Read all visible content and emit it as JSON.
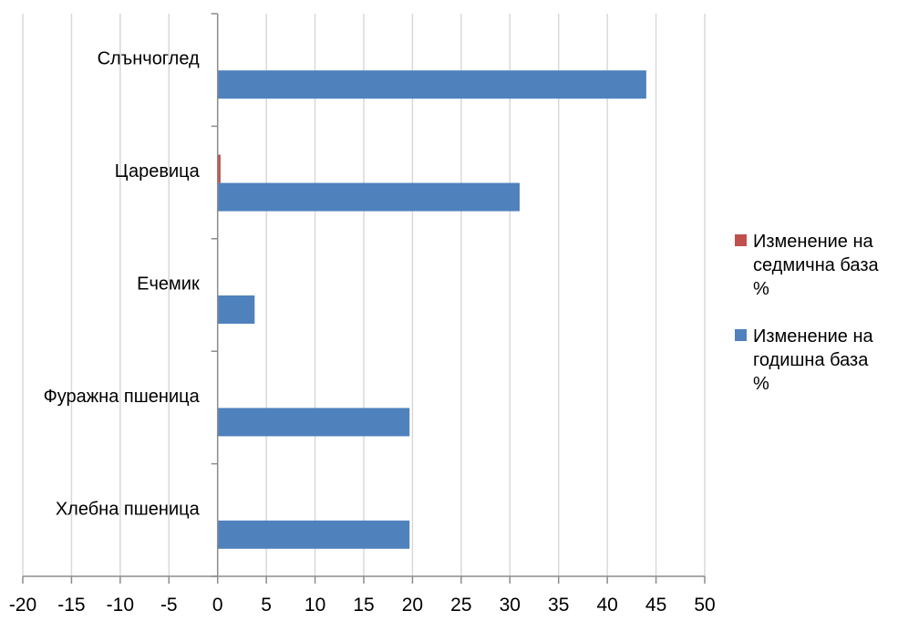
{
  "chart_data": {
    "type": "bar",
    "orientation": "horizontal",
    "categories": [
      "Слънчоглед",
      "Царевица",
      "Ечемик",
      "Фуражна пшеница",
      "Хлебна пшеница"
    ],
    "series": [
      {
        "name": "Изменение на седмична база %",
        "color": "#C0504D",
        "values": [
          0,
          0.3,
          0,
          0,
          0
        ]
      },
      {
        "name": "Изменение на годишна база %",
        "color": "#4F81BD",
        "values": [
          44,
          31,
          3.8,
          19.7,
          19.7
        ]
      }
    ],
    "x_ticks": [
      "-20",
      "-15",
      "-10",
      "-5",
      "0",
      "5",
      "10",
      "15",
      "20",
      "25",
      "30",
      "35",
      "40",
      "45",
      "50"
    ],
    "xlim": [
      -20,
      50
    ],
    "grid": true,
    "legend_position": "right",
    "legend": [
      {
        "line1": "Изменение на",
        "line2": "седмична база",
        "line3": "%",
        "color": "#C0504D"
      },
      {
        "line1": "Изменение на",
        "line2": "годишна база",
        "line3": "%",
        "color": "#4F81BD"
      }
    ]
  }
}
